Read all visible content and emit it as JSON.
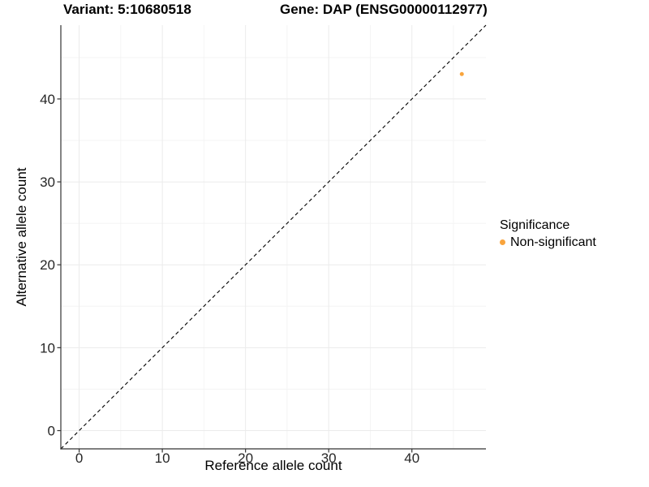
{
  "chart_data": {
    "type": "scatter",
    "titles": {
      "left": "Variant: 5:10680518",
      "right": "Gene: DAP (ENSG00000112977)"
    },
    "xlabel": "Reference allele count",
    "ylabel": "Alternative allele count",
    "xlim": [
      -2.2,
      48.9
    ],
    "ylim": [
      -2.2,
      48.9
    ],
    "x_ticks": [
      0,
      10,
      20,
      30,
      40
    ],
    "y_ticks": [
      0,
      10,
      20,
      30,
      40
    ],
    "minor_tick_step": 5,
    "grid": true,
    "identity_line": {
      "slope": 1,
      "intercept": 0,
      "style": "dashed",
      "color": "#000000"
    },
    "points": [
      {
        "x": 46,
        "y": 43,
        "series": "Non-significant"
      }
    ],
    "point_radius_px": 2.5,
    "legend": {
      "title": "Significance",
      "position": "right",
      "items": [
        {
          "label": "Non-significant",
          "color": "#F9A43C"
        }
      ]
    },
    "colors": {
      "background": "#FFFFFF",
      "grid_major": "#EBEBEB",
      "grid_minor": "#F4F4F4",
      "axis_line": "#333333",
      "tick_mark": "#333333",
      "tick_label": "#262626",
      "title": "#000000"
    }
  }
}
